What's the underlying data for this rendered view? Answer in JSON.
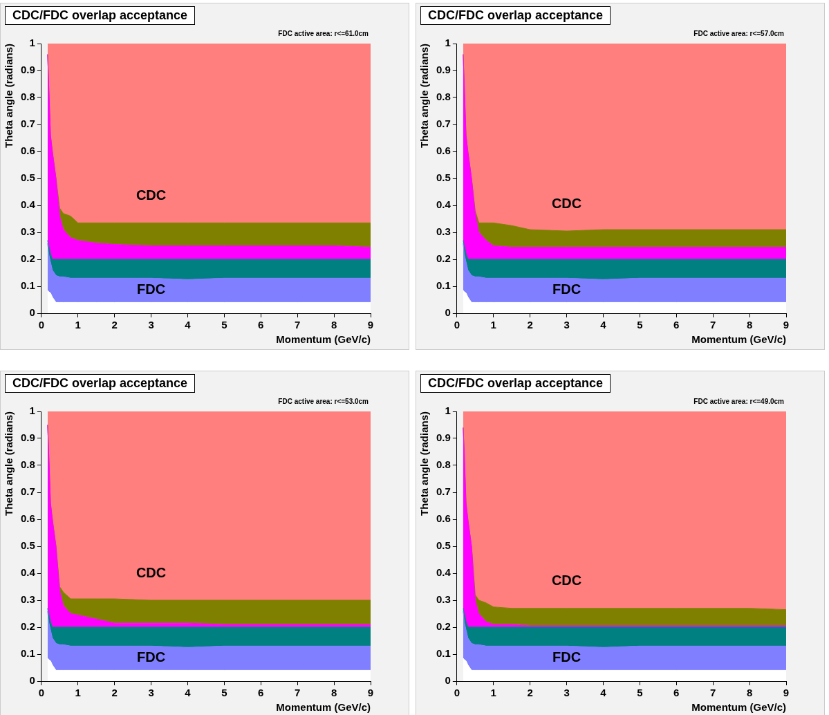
{
  "chart_data": [
    {
      "type": "area",
      "title": "CDC/FDC overlap acceptance",
      "subtitle": "FDC active area: r<=61.0cm",
      "xlabel": "Momentum (GeV/c)",
      "ylabel": "Theta angle (radians)",
      "stacked": true,
      "xlim": [
        0,
        9
      ],
      "xticks": [
        0,
        1,
        2,
        3,
        4,
        5,
        6,
        7,
        8,
        9
      ],
      "ylim": [
        0,
        1
      ],
      "yticks": [
        0,
        0.1,
        0.2,
        0.3,
        0.4,
        0.5,
        0.6,
        0.7,
        0.8,
        0.9,
        1
      ],
      "legend": false,
      "grid": false,
      "x": [
        0.17,
        0.2,
        0.25,
        0.3,
        0.4,
        0.5,
        0.6,
        0.8,
        1,
        1.5,
        2,
        3,
        4,
        5,
        6,
        7,
        8,
        9
      ],
      "series": [
        {
          "color": "#ffffff",
          "values": [
            0.085,
            0.08,
            0.075,
            0.06,
            0.04,
            0.04,
            0.04,
            0.04,
            0.04,
            0.04,
            0.04,
            0.04,
            0.04,
            0.04,
            0.04,
            0.04,
            0.04,
            0.04
          ]
        },
        {
          "name": "FDC",
          "color": "#7f7fff",
          "values": [
            0.175,
            0.14,
            0.115,
            0.1,
            0.1,
            0.095,
            0.095,
            0.09,
            0.09,
            0.09,
            0.09,
            0.09,
            0.085,
            0.09,
            0.09,
            0.09,
            0.09,
            0.09
          ]
        },
        {
          "color": "#008080",
          "values": [
            0.01,
            0.03,
            0.03,
            0.04,
            0.06,
            0.065,
            0.065,
            0.07,
            0.07,
            0.07,
            0.07,
            0.07,
            0.075,
            0.07,
            0.07,
            0.07,
            0.07,
            0.07
          ]
        },
        {
          "color": "#ff00ff",
          "values": [
            0.69,
            0.6,
            0.44,
            0.4,
            0.3,
            0.16,
            0.11,
            0.08,
            0.07,
            0.06,
            0.055,
            0.05,
            0.05,
            0.05,
            0.05,
            0.05,
            0.05,
            0.045
          ]
        },
        {
          "color": "#808000",
          "values": [
            0,
            0,
            0,
            0,
            0,
            0.03,
            0.06,
            0.08,
            0.065,
            0.075,
            0.08,
            0.085,
            0.085,
            0.085,
            0.085,
            0.085,
            0.085,
            0.09
          ]
        },
        {
          "name": "CDC",
          "color": "#ff7f7f",
          "values": [
            0.04,
            0.15,
            0.34,
            0.4,
            0.5,
            0.61,
            0.63,
            0.64,
            0.665,
            0.665,
            0.665,
            0.665,
            0.665,
            0.665,
            0.665,
            0.665,
            0.665,
            0.665
          ]
        }
      ]
    },
    {
      "type": "area",
      "title": "CDC/FDC overlap acceptance",
      "subtitle": "FDC active area: r<=57.0cm",
      "xlabel": "Momentum (GeV/c)",
      "ylabel": "Theta angle (radians)",
      "stacked": true,
      "xlim": [
        0,
        9
      ],
      "xticks": [
        0,
        1,
        2,
        3,
        4,
        5,
        6,
        7,
        8,
        9
      ],
      "ylim": [
        0,
        1
      ],
      "yticks": [
        0,
        0.1,
        0.2,
        0.3,
        0.4,
        0.5,
        0.6,
        0.7,
        0.8,
        0.9,
        1
      ],
      "legend": false,
      "grid": false,
      "x": [
        0.17,
        0.2,
        0.25,
        0.3,
        0.4,
        0.5,
        0.6,
        0.8,
        1,
        1.5,
        2,
        3,
        4,
        5,
        6,
        7,
        8,
        9
      ],
      "series": [
        {
          "color": "#ffffff",
          "values": [
            0.085,
            0.08,
            0.075,
            0.06,
            0.04,
            0.04,
            0.04,
            0.04,
            0.04,
            0.04,
            0.04,
            0.04,
            0.04,
            0.04,
            0.04,
            0.04,
            0.04,
            0.04
          ]
        },
        {
          "name": "FDC",
          "color": "#7f7fff",
          "values": [
            0.175,
            0.14,
            0.115,
            0.1,
            0.1,
            0.095,
            0.095,
            0.09,
            0.09,
            0.09,
            0.09,
            0.09,
            0.085,
            0.09,
            0.09,
            0.09,
            0.09,
            0.09
          ]
        },
        {
          "color": "#008080",
          "values": [
            0.01,
            0.03,
            0.03,
            0.04,
            0.06,
            0.065,
            0.065,
            0.07,
            0.07,
            0.07,
            0.07,
            0.07,
            0.075,
            0.07,
            0.07,
            0.07,
            0.07,
            0.07
          ]
        },
        {
          "color": "#ff00ff",
          "values": [
            0.69,
            0.6,
            0.44,
            0.4,
            0.3,
            0.17,
            0.1,
            0.07,
            0.05,
            0.045,
            0.045,
            0.045,
            0.045,
            0.045,
            0.045,
            0.045,
            0.045,
            0.045
          ]
        },
        {
          "color": "#808000",
          "values": [
            0,
            0,
            0,
            0,
            0,
            0.01,
            0.035,
            0.065,
            0.085,
            0.08,
            0.065,
            0.06,
            0.065,
            0.065,
            0.065,
            0.065,
            0.065,
            0.065
          ]
        },
        {
          "name": "CDC",
          "color": "#ff7f7f",
          "values": [
            0.04,
            0.15,
            0.34,
            0.4,
            0.5,
            0.62,
            0.665,
            0.665,
            0.665,
            0.675,
            0.69,
            0.695,
            0.69,
            0.69,
            0.69,
            0.69,
            0.69,
            0.69
          ]
        }
      ]
    },
    {
      "type": "area",
      "title": "CDC/FDC overlap acceptance",
      "subtitle": "FDC active area: r<=53.0cm",
      "xlabel": "Momentum (GeV/c)",
      "ylabel": "Theta angle (radians)",
      "stacked": true,
      "xlim": [
        0,
        9
      ],
      "xticks": [
        0,
        1,
        2,
        3,
        4,
        5,
        6,
        7,
        8,
        9
      ],
      "ylim": [
        0,
        1
      ],
      "yticks": [
        0,
        0.1,
        0.2,
        0.3,
        0.4,
        0.5,
        0.6,
        0.7,
        0.8,
        0.9,
        1
      ],
      "legend": false,
      "grid": false,
      "x": [
        0.17,
        0.2,
        0.25,
        0.3,
        0.4,
        0.5,
        0.6,
        0.8,
        1,
        1.5,
        2,
        3,
        4,
        5,
        6,
        7,
        8,
        9
      ],
      "series": [
        {
          "color": "#ffffff",
          "values": [
            0.085,
            0.08,
            0.075,
            0.06,
            0.04,
            0.04,
            0.04,
            0.04,
            0.04,
            0.04,
            0.04,
            0.04,
            0.04,
            0.04,
            0.04,
            0.04,
            0.04,
            0.04
          ]
        },
        {
          "name": "FDC",
          "color": "#7f7fff",
          "values": [
            0.175,
            0.14,
            0.115,
            0.1,
            0.1,
            0.095,
            0.095,
            0.09,
            0.09,
            0.09,
            0.09,
            0.09,
            0.085,
            0.09,
            0.09,
            0.09,
            0.09,
            0.09
          ]
        },
        {
          "color": "#008080",
          "values": [
            0.01,
            0.03,
            0.03,
            0.04,
            0.06,
            0.065,
            0.065,
            0.07,
            0.07,
            0.07,
            0.07,
            0.07,
            0.075,
            0.07,
            0.07,
            0.07,
            0.07,
            0.07
          ]
        },
        {
          "color": "#ff00ff",
          "values": [
            0.68,
            0.6,
            0.44,
            0.4,
            0.3,
            0.135,
            0.08,
            0.05,
            0.045,
            0.03,
            0.015,
            0.015,
            0.015,
            0.01,
            0.01,
            0.01,
            0.01,
            0.01
          ]
        },
        {
          "color": "#808000",
          "values": [
            0,
            0,
            0,
            0,
            0,
            0.015,
            0.05,
            0.055,
            0.06,
            0.075,
            0.09,
            0.085,
            0.085,
            0.09,
            0.09,
            0.09,
            0.09,
            0.09
          ]
        },
        {
          "name": "CDC",
          "color": "#ff7f7f",
          "values": [
            0.05,
            0.15,
            0.34,
            0.4,
            0.5,
            0.65,
            0.67,
            0.695,
            0.695,
            0.695,
            0.695,
            0.7,
            0.7,
            0.7,
            0.7,
            0.7,
            0.7,
            0.7
          ]
        }
      ]
    },
    {
      "type": "area",
      "title": "CDC/FDC overlap acceptance",
      "subtitle": "FDC active area: r<=49.0cm",
      "xlabel": "Momentum (GeV/c)",
      "ylabel": "Theta angle (radians)",
      "stacked": true,
      "xlim": [
        0,
        9
      ],
      "xticks": [
        0,
        1,
        2,
        3,
        4,
        5,
        6,
        7,
        8,
        9
      ],
      "ylim": [
        0,
        1
      ],
      "yticks": [
        0,
        0.1,
        0.2,
        0.3,
        0.4,
        0.5,
        0.6,
        0.7,
        0.8,
        0.9,
        1
      ],
      "legend": false,
      "grid": false,
      "x": [
        0.17,
        0.2,
        0.25,
        0.3,
        0.4,
        0.5,
        0.6,
        0.8,
        1,
        1.5,
        2,
        3,
        4,
        5,
        6,
        7,
        8,
        9
      ],
      "series": [
        {
          "color": "#ffffff",
          "values": [
            0.085,
            0.08,
            0.075,
            0.06,
            0.04,
            0.04,
            0.04,
            0.04,
            0.04,
            0.04,
            0.04,
            0.04,
            0.04,
            0.04,
            0.04,
            0.04,
            0.04,
            0.04
          ]
        },
        {
          "name": "FDC",
          "color": "#7f7fff",
          "values": [
            0.175,
            0.14,
            0.115,
            0.1,
            0.1,
            0.095,
            0.095,
            0.09,
            0.09,
            0.09,
            0.09,
            0.09,
            0.085,
            0.09,
            0.09,
            0.09,
            0.09,
            0.09
          ]
        },
        {
          "color": "#008080",
          "values": [
            0.01,
            0.03,
            0.03,
            0.04,
            0.06,
            0.065,
            0.065,
            0.07,
            0.07,
            0.07,
            0.07,
            0.07,
            0.075,
            0.07,
            0.07,
            0.07,
            0.07,
            0.07
          ]
        },
        {
          "color": "#ff00ff",
          "values": [
            0.67,
            0.6,
            0.44,
            0.4,
            0.3,
            0.1,
            0.05,
            0.02,
            0.01,
            0.01,
            0.005,
            0.005,
            0.005,
            0.005,
            0.005,
            0.005,
            0.005,
            0.005
          ]
        },
        {
          "color": "#808000",
          "values": [
            0,
            0,
            0,
            0,
            0,
            0.02,
            0.05,
            0.07,
            0.065,
            0.06,
            0.065,
            0.065,
            0.065,
            0.065,
            0.065,
            0.065,
            0.065,
            0.06
          ]
        },
        {
          "name": "CDC",
          "color": "#ff7f7f",
          "values": [
            0.06,
            0.15,
            0.34,
            0.4,
            0.5,
            0.68,
            0.7,
            0.71,
            0.725,
            0.73,
            0.73,
            0.73,
            0.73,
            0.73,
            0.73,
            0.73,
            0.73,
            0.735
          ]
        }
      ]
    }
  ]
}
